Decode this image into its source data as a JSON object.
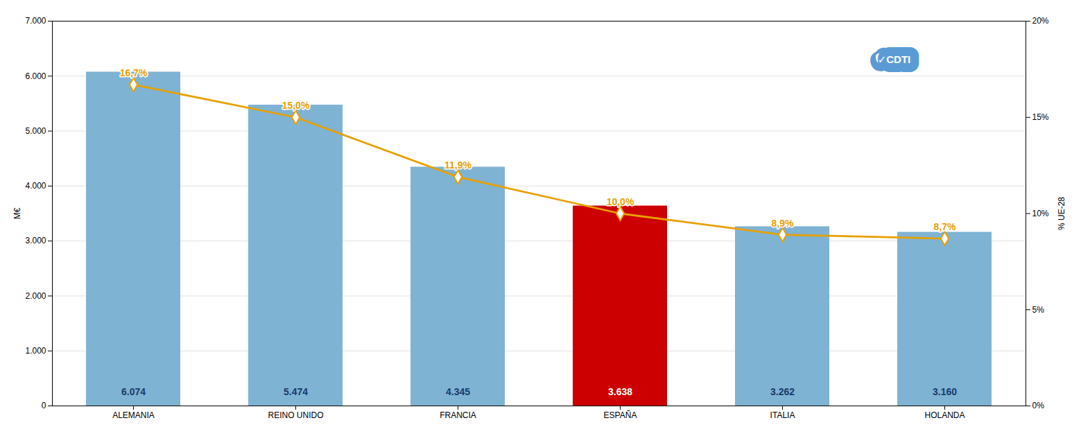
{
  "chart_data": {
    "type": "bar",
    "categories": [
      "ALEMANIA",
      "REINO UNIDO",
      "FRANCIA",
      "ESPAÑA",
      "ITALIA",
      "HOLANDA"
    ],
    "series": [
      {
        "type": "bar",
        "values": [
          6074,
          5474,
          4345,
          3638,
          3262,
          3160
        ],
        "value_labels": [
          "6.074",
          "5.474",
          "4.345",
          "3.638",
          "3.262",
          "3.160"
        ],
        "colors": [
          "#7FB3D3",
          "#7FB3D3",
          "#7FB3D3",
          "#CC0000",
          "#7FB3D3",
          "#7FB3D3"
        ]
      },
      {
        "type": "line",
        "axis": "y2",
        "color": "#E8A000",
        "marker": "diamond",
        "values": [
          0.167,
          0.15,
          0.119,
          0.1,
          0.089,
          0.087
        ],
        "value_labels": [
          "16,7%",
          "15,0%",
          "11,9%",
          "10,0%",
          "8,9%",
          "8,7%"
        ]
      }
    ],
    "ylabel": "M€",
    "y2label": "% UE-28",
    "ylim": [
      0,
      7000
    ],
    "yticks": [
      0,
      {
        "value": 1000,
        "label": "1.000"
      },
      {
        "value": 2000,
        "label": "2.000"
      },
      {
        "value": 3000,
        "label": "3.000"
      },
      {
        "value": 4000,
        "label": "4.000"
      },
      {
        "value": 5000,
        "label": "5.000"
      },
      {
        "value": 6000,
        "label": "6.000"
      },
      {
        "value": 7000,
        "label": "7.000"
      }
    ],
    "y2lim": [
      0,
      0.2
    ],
    "y2ticks": [
      {
        "value": 0,
        "label": "0%"
      },
      {
        "value": 0.05,
        "label": "5%"
      },
      {
        "value": 0.1,
        "label": "10%"
      },
      {
        "value": 0.15,
        "label": "15%"
      },
      {
        "value": 0.2,
        "label": "20%"
      }
    ],
    "grid": true,
    "data_labels": true,
    "annotations": [
      "✓CDTI"
    ]
  }
}
